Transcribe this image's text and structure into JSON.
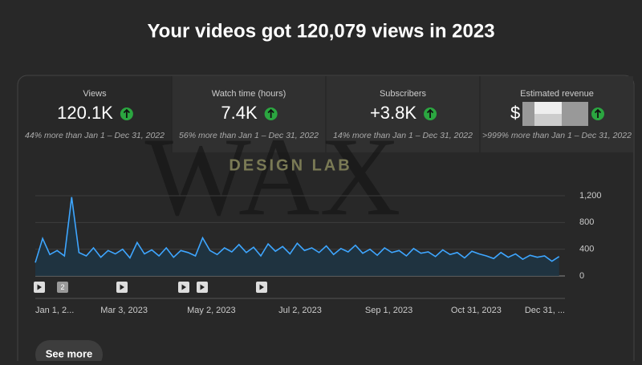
{
  "header": {
    "title": "Your videos got 120,079 views in 2023"
  },
  "cards": [
    {
      "label": "Views",
      "value": "120.1K",
      "note": "44% more than Jan 1 – Dec 31, 2022"
    },
    {
      "label": "Watch time (hours)",
      "value": "7.4K",
      "note": "56% more than Jan 1 – Dec 31, 2022"
    },
    {
      "label": "Subscribers",
      "value": "+3.8K",
      "note": "14% more than Jan 1 – Dec 31, 2022"
    },
    {
      "label": "Estimated revenue",
      "value": "$",
      "note": ">999% more than Jan 1 – Dec 31, 2022"
    }
  ],
  "watermark": {
    "big": "WAX",
    "small": "DESIGN LAB"
  },
  "chart_data": {
    "type": "line",
    "x": [
      0,
      5,
      10,
      15,
      20,
      25,
      30,
      35,
      40,
      45,
      50,
      55,
      60,
      65,
      70,
      75,
      80,
      85,
      90,
      95,
      100,
      105,
      110,
      115,
      120,
      125,
      130,
      135,
      140,
      145,
      150,
      155,
      160,
      165,
      170,
      175,
      180,
      185,
      190,
      195,
      200,
      205,
      210,
      215,
      220,
      225,
      230,
      235,
      240,
      245,
      250,
      255,
      260,
      265,
      270,
      275,
      280,
      285,
      290,
      295,
      300,
      305,
      310,
      315,
      320,
      325,
      330,
      335,
      340,
      345,
      350,
      355,
      360
    ],
    "series": [
      {
        "name": "Views",
        "color": "#3ea6ff",
        "values": [
          200,
          560,
          320,
          380,
          300,
          1180,
          350,
          300,
          420,
          280,
          380,
          330,
          400,
          270,
          500,
          330,
          390,
          300,
          420,
          280,
          380,
          350,
          300,
          570,
          380,
          320,
          420,
          360,
          470,
          350,
          430,
          300,
          480,
          370,
          440,
          330,
          490,
          380,
          420,
          350,
          450,
          320,
          410,
          360,
          460,
          340,
          400,
          310,
          420,
          350,
          380,
          300,
          410,
          340,
          360,
          290,
          390,
          320,
          350,
          270,
          370,
          330,
          300,
          260,
          350,
          280,
          330,
          250,
          310,
          280,
          300,
          220,
          290
        ]
      }
    ],
    "xlim": [
      0,
      364
    ],
    "xticks": [
      {
        "value": 0,
        "label": "Jan 1, 2..."
      },
      {
        "value": 61,
        "label": "Mar 3, 2023"
      },
      {
        "value": 121,
        "label": "May 2, 2023"
      },
      {
        "value": 182,
        "label": "Jul 2, 2023"
      },
      {
        "value": 243,
        "label": "Sep 1, 2023"
      },
      {
        "value": 303,
        "label": "Oct 31, 2023"
      },
      {
        "value": 364,
        "label": "Dec 31, ..."
      }
    ],
    "ylim": [
      0,
      1200
    ],
    "yticks": [
      0,
      400,
      800,
      {
        "value": 1200,
        "label": "1,200"
      }
    ],
    "grid": true
  },
  "event_badge": "2",
  "button": {
    "label": "See more"
  }
}
